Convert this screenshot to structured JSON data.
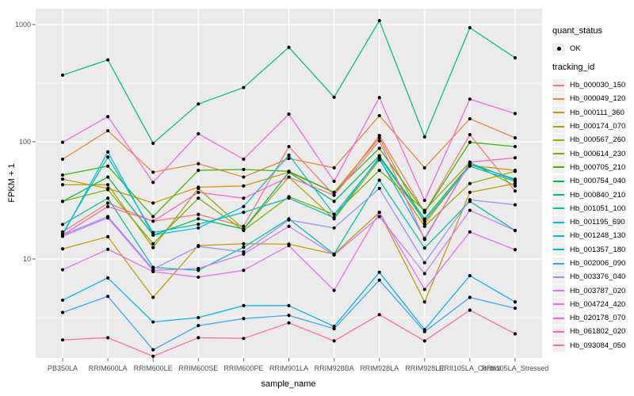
{
  "colors": {
    "panel_bg": "#EBEBEB",
    "grid": "#FFFFFF",
    "tick_mark": "#666666",
    "tick_label": "#4D4D4D",
    "axis_title": "#000000",
    "legend_key_bg": "#F0F0F0",
    "point": "#000000"
  },
  "legend": {
    "quant_status_title": "quant_status",
    "quant_status_items": [
      {
        "label": "OK",
        "marker": "black-point"
      }
    ],
    "tracking_id_title": "tracking_id"
  },
  "chart_data": {
    "type": "line",
    "title": "",
    "xlabel": "sample_name",
    "ylabel": "FPKM + 1",
    "y_scale": "log10",
    "ylim": [
      1.4,
      1370
    ],
    "y_ticks": [
      10,
      100,
      1000
    ],
    "y_minor_gridlines": [
      3.162,
      31.62,
      316.2
    ],
    "grid": "on",
    "legend_position": "right",
    "point_marker": "filled-circle",
    "categories": [
      "PB350LA",
      "RRIM600LA",
      "RRIM600LE",
      "RRIM600SE",
      "RRIM600PE",
      "RRIM901LA",
      "RRIM928BA",
      "RRIM928LA",
      "RRIM928LE",
      "RRII105LA_Control",
      "RRII105LA_Stressed"
    ],
    "series": [
      {
        "name": "Hb_000030_150",
        "color": "#F8766D",
        "quant_status": "OK",
        "values": [
          17,
          30,
          21,
          24,
          19,
          91,
          35,
          113,
          25,
          115,
          38
        ]
      },
      {
        "name": "Hb_000049_120",
        "color": "#EA8331",
        "quant_status": "OK",
        "values": [
          71,
          124,
          55,
          65,
          50,
          72,
          60,
          167,
          60,
          157,
          108
        ]
      },
      {
        "name": "Hb_000111_360",
        "color": "#D89000",
        "quant_status": "OK",
        "values": [
          48,
          40,
          30,
          41,
          42,
          55,
          37,
          108,
          20,
          63,
          57
        ]
      },
      {
        "name": "Hb_000174_070",
        "color": "#C09B00",
        "quant_status": "OK",
        "values": [
          12.2,
          15.5,
          4.7,
          13,
          13.5,
          13.4,
          11,
          25,
          4.3,
          37,
          44
        ]
      },
      {
        "name": "Hb_000567_260",
        "color": "#A3A500",
        "quant_status": "OK",
        "values": [
          43,
          43,
          12.5,
          40,
          18,
          50,
          22,
          70,
          19,
          44,
          56
        ]
      },
      {
        "name": "Hb_000614_230",
        "color": "#7CAE00",
        "quant_status": "OK",
        "values": [
          31,
          39,
          13.5,
          33,
          17.5,
          34,
          24,
          57,
          26,
          67,
          42
        ]
      },
      {
        "name": "Hb_000705_210",
        "color": "#39B600",
        "quant_status": "OK",
        "values": [
          52,
          62,
          23,
          57,
          58,
          56,
          37,
          88,
          25,
          99,
          91
        ]
      },
      {
        "name": "Hb_000754_040",
        "color": "#00BB4E",
        "quant_status": "OK",
        "values": [
          31,
          50,
          16,
          22,
          18,
          55,
          31,
          76,
          22,
          64,
          48
        ]
      },
      {
        "name": "Hb_000840_210",
        "color": "#00BF7D",
        "quant_status": "OK",
        "values": [
          370,
          500,
          97,
          210,
          290,
          640,
          240,
          1080,
          110,
          940,
          520
        ]
      },
      {
        "name": "Hb_001051_100",
        "color": "#00C1A3",
        "quant_status": "OK",
        "values": [
          19.7,
          33,
          8.5,
          8,
          12.6,
          22,
          11,
          47,
          12.4,
          31,
          17.5
        ]
      },
      {
        "name": "Hb_001195_690",
        "color": "#00BFC4",
        "quant_status": "OK",
        "values": [
          16.5,
          74,
          16.8,
          19.8,
          25,
          33,
          22.5,
          74,
          21,
          62,
          46
        ]
      },
      {
        "name": "Hb_001248_130",
        "color": "#00BAE0",
        "quant_status": "OK",
        "values": [
          16,
          82,
          16,
          18.4,
          28,
          77,
          24,
          72,
          15,
          66,
          47
        ]
      },
      {
        "name": "Hb_001357_180",
        "color": "#00B0F6",
        "quant_status": "OK",
        "values": [
          4.45,
          6.9,
          2.9,
          3.16,
          4.0,
          4.0,
          2.66,
          7.7,
          2.5,
          7.2,
          4.3
        ]
      },
      {
        "name": "Hb_002006_090",
        "color": "#35A2FF",
        "quant_status": "OK",
        "values": [
          3.5,
          4.8,
          1.68,
          2.7,
          3.1,
          3.3,
          2.54,
          6.6,
          2.4,
          4.7,
          3.8
        ]
      },
      {
        "name": "Hb_003376_040",
        "color": "#9590FF",
        "quant_status": "OK",
        "values": [
          16,
          23,
          8.2,
          12.8,
          11.5,
          21.5,
          18.4,
          40,
          9.3,
          32,
          29
        ]
      },
      {
        "name": "Hb_003787_020",
        "color": "#C77CFF",
        "quant_status": "OK",
        "values": [
          15.6,
          22.4,
          8.0,
          8.3,
          11,
          19,
          10.8,
          23,
          7.5,
          26,
          17.5
        ]
      },
      {
        "name": "Hb_004724_420",
        "color": "#E76BF3",
        "quant_status": "OK",
        "values": [
          8.1,
          12.1,
          7.8,
          7.0,
          8.0,
          13,
          5.4,
          25,
          5.5,
          17,
          12
        ]
      },
      {
        "name": "Hb_020178_070",
        "color": "#FA62DB",
        "quant_status": "OK",
        "values": [
          99,
          164,
          45,
          117,
          71,
          172,
          46,
          238,
          31.6,
          231,
          174
        ]
      },
      {
        "name": "Hb_061802_020",
        "color": "#FF62BC",
        "quant_status": "OK",
        "values": [
          16,
          28,
          21,
          37,
          33,
          50,
          35,
          102,
          14.7,
          67,
          73
        ]
      },
      {
        "name": "Hb_093084_050",
        "color": "#FF6A98",
        "quant_status": "OK",
        "values": [
          2.04,
          2.13,
          1.48,
          2.13,
          2.1,
          2.85,
          2.0,
          3.35,
          2.0,
          3.66,
          2.3
        ]
      }
    ]
  }
}
